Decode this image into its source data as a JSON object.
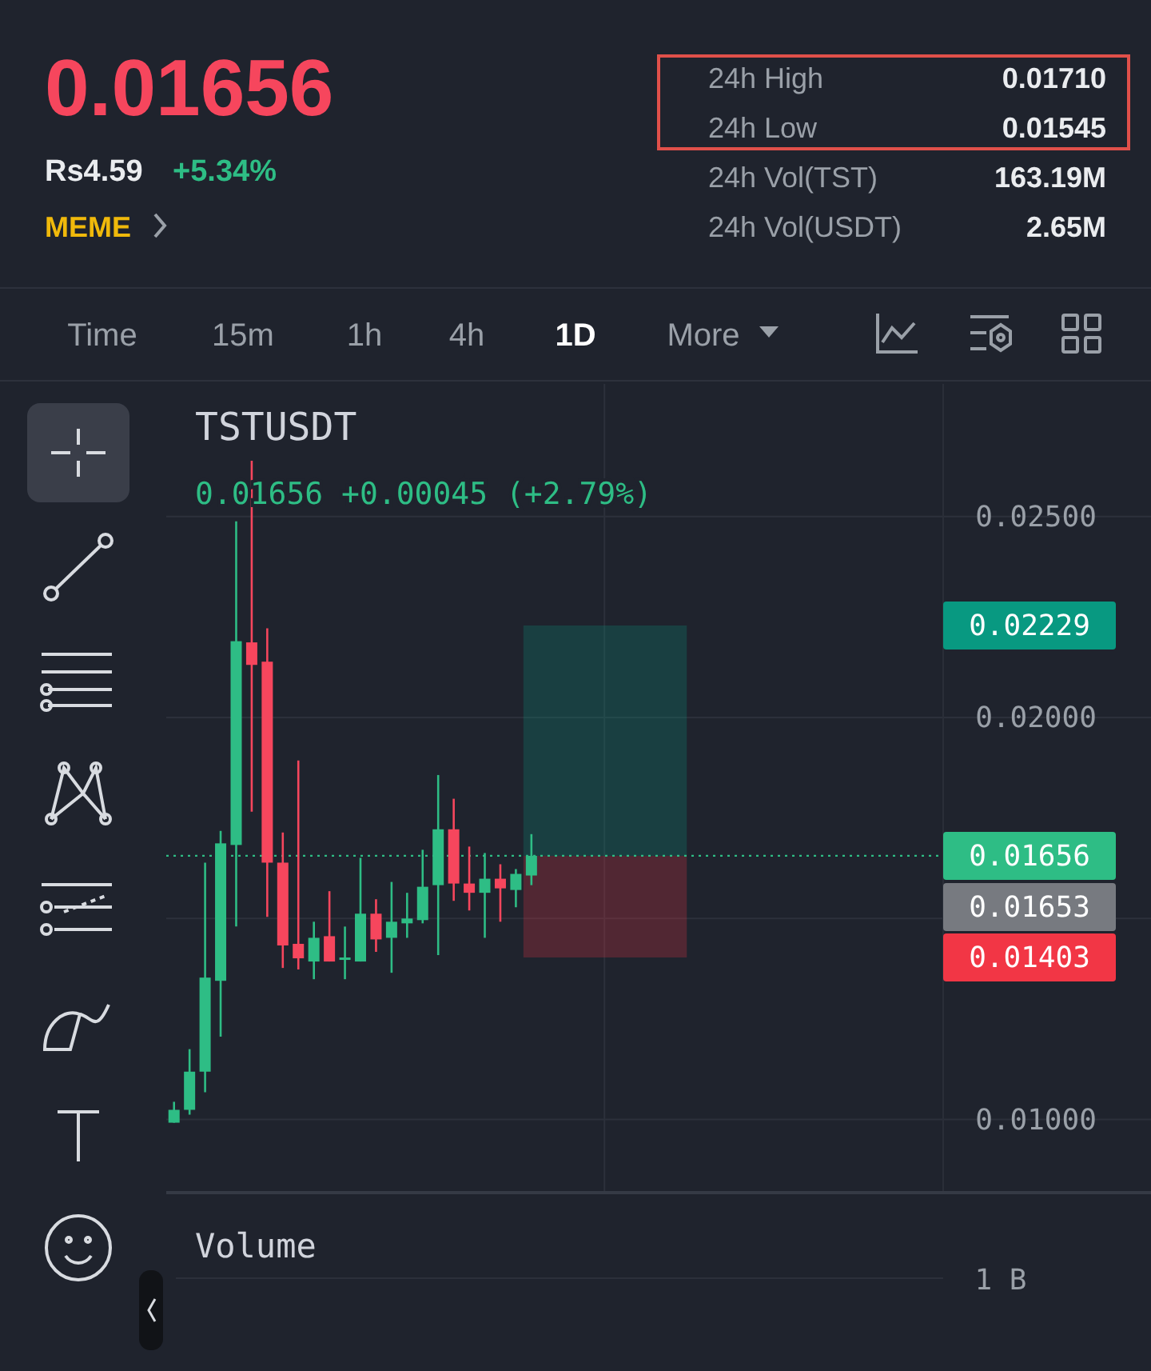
{
  "chart_data": [
    {
      "type": "other",
      "annotations": [
        "0.01656",
        "Rs4.59",
        "+5.34%",
        "MEME",
        "24h High",
        "0.01710",
        "24h Low",
        "0.01545",
        "24h Vol(TST)",
        "163.19M",
        "24h Vol(USDT)",
        "2.65M",
        "Time",
        "15m",
        "1h",
        "4h",
        "1D",
        "More"
      ]
    },
    {
      "type": "candlestick",
      "title": "TSTUSDT",
      "subtitle": "0.01656 +0.00045 (+2.79%)",
      "categories": [
        null,
        null,
        null,
        null,
        null,
        null,
        null,
        null,
        null,
        null,
        null,
        null,
        null,
        null,
        null,
        null,
        null,
        null,
        null,
        null,
        null,
        null,
        null,
        null,
        null,
        null,
        null,
        null,
        null,
        null,
        null,
        null,
        null,
        null,
        null,
        null,
        null,
        null,
        null,
        null,
        null,
        null,
        null,
        null,
        null,
        null,
        null,
        null,
        null,
        null
      ],
      "ohlc": [
        [
          0.00992,
          0.01044,
          0.00992,
          0.01024
        ],
        [
          0.01024,
          0.01175,
          0.01012,
          0.01119
        ],
        [
          0.01119,
          0.01639,
          0.01068,
          0.01353
        ],
        [
          0.01345,
          0.01718,
          0.01206,
          0.01687
        ],
        [
          0.01683,
          0.02488,
          0.0148,
          0.0219
        ],
        [
          0.02187,
          0.02639,
          0.01766,
          0.02131
        ],
        [
          0.02139,
          0.02222,
          0.01504,
          0.01639
        ],
        [
          0.01639,
          0.01714,
          0.01377,
          0.01433
        ],
        [
          0.01437,
          0.01893,
          0.01373,
          0.01401
        ],
        [
          0.01393,
          0.01492,
          0.01349,
          0.01452
        ],
        [
          0.01456,
          0.01568,
          0.01393,
          0.01393
        ],
        [
          0.01401,
          0.0148,
          0.01349,
          0.01403
        ],
        [
          0.01393,
          0.01651,
          0.01393,
          0.01512
        ],
        [
          0.01512,
          0.01548,
          0.01417,
          0.01448
        ],
        [
          0.01452,
          0.01591,
          0.01365,
          0.01492
        ],
        [
          0.01488,
          0.01564,
          0.01452,
          0.015
        ],
        [
          0.01496,
          0.01671,
          0.01488,
          0.01579
        ],
        [
          0.01583,
          0.01857,
          0.01409,
          0.01722
        ],
        [
          0.01722,
          0.01798,
          0.01544,
          0.01587
        ],
        [
          0.01587,
          0.01679,
          0.0152,
          0.01564
        ],
        [
          0.01564,
          0.01663,
          0.01452,
          0.01599
        ],
        [
          0.01599,
          0.01635,
          0.01492,
          0.01575
        ],
        [
          0.01571,
          0.01623,
          0.01528,
          0.01611
        ],
        [
          0.01607,
          0.0171,
          0.01583,
          0.01656
        ],
        null,
        null,
        null,
        null,
        null,
        null,
        null,
        null,
        null,
        null,
        null,
        null,
        null,
        null,
        null,
        null,
        null,
        null,
        null,
        null,
        null,
        null,
        null,
        null,
        null,
        null
      ],
      "ylim": [
        0.0082,
        0.0283
      ],
      "yticks": [
        {
          "value": 0.01,
          "label": "0.01000"
        },
        {
          "value": 0.015,
          "label": null
        },
        {
          "value": 0.02,
          "label": "0.02000"
        },
        {
          "value": 0.025,
          "label": "0.02500"
        }
      ],
      "grid": true,
      "tick_labels": "y",
      "bands": [
        {
          "axis": "y",
          "from": 0.01656,
          "to": 0.02229,
          "color": "#089981"
        },
        {
          "axis": "y",
          "from": 0.01403,
          "to": 0.01656,
          "color": "#f23645"
        }
      ],
      "ref_lines": [
        {
          "axis": "y",
          "value": 0.01656,
          "label": "0.01656",
          "color": "#2ebd85",
          "line_style": "dotted"
        }
      ],
      "annotations": [
        "0.02229",
        "0.01653",
        "0.01403"
      ]
    },
    {
      "type": "other",
      "title": "Volume",
      "annotations": [
        "1 B"
      ]
    }
  ]
}
